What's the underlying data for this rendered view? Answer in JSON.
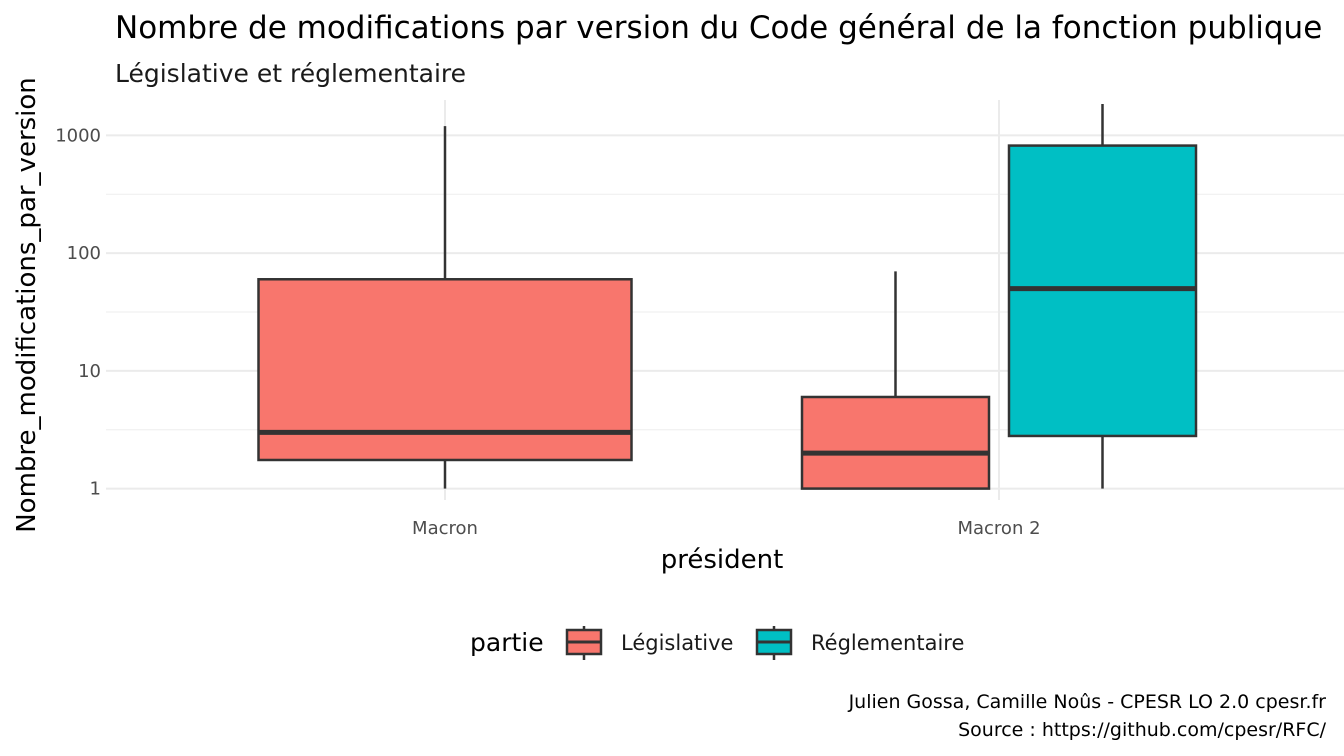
{
  "chart_data": {
    "type": "boxplot",
    "title": "Nombre de modifications par version du Code général de la fonction publique",
    "subtitle": "Législative et réglementaire",
    "xlabel": "président",
    "ylabel": "Nombre_modifications_par_version",
    "y_scale": "log10",
    "ylim": [
      0.8,
      2000
    ],
    "y_ticks": [
      1,
      10,
      100,
      1000
    ],
    "y_tick_labels": [
      "1",
      "10",
      "100",
      "1000"
    ],
    "grid": true,
    "categories": [
      "Macron",
      "Macron 2"
    ],
    "series": [
      {
        "name": "Législative",
        "color": "#F8766D",
        "boxes": [
          {
            "category": "Macron",
            "min": 1,
            "q1": 1.75,
            "median": 3,
            "q3": 60,
            "max": 1200
          },
          {
            "category": "Macron 2",
            "min": 1,
            "q1": 1,
            "median": 2,
            "q3": 6,
            "max": 70
          }
        ]
      },
      {
        "name": "Réglementaire",
        "color": "#00BFC4",
        "boxes": [
          {
            "category": "Macron 2",
            "min": 1,
            "q1": 2.8,
            "median": 50,
            "q3": 820,
            "max": 1850
          }
        ]
      }
    ],
    "legend": {
      "title": "partie",
      "position": "bottom",
      "entries": [
        "Législative",
        "Réglementaire"
      ]
    },
    "caption": [
      "Julien Gossa, Camille Noûs - CPESR LO 2.0 cpesr.fr",
      "Source : https://github.com/cpesr/RFC/"
    ]
  }
}
